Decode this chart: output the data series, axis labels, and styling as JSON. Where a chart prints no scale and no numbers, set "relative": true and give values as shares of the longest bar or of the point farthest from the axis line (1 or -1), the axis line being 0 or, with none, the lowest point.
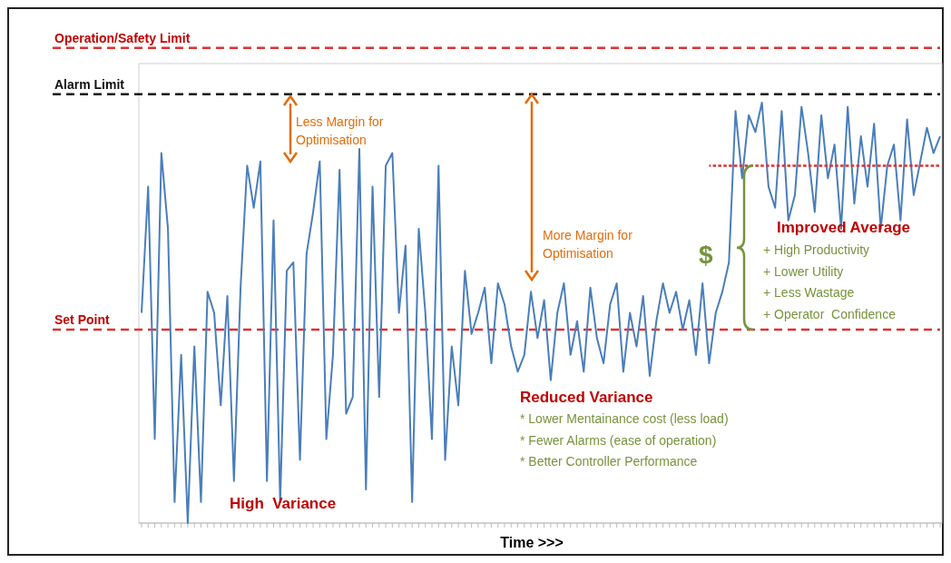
{
  "chart_data": {
    "type": "line",
    "relative": true,
    "xlabel": "Time >>>",
    "categories": [
      null,
      null,
      null,
      null,
      null,
      null,
      null,
      null,
      null,
      null,
      null,
      null,
      null,
      null,
      null,
      null,
      null,
      null,
      null,
      null,
      null,
      null,
      null,
      null,
      null,
      null,
      null,
      null,
      null,
      null,
      null,
      null,
      null,
      null,
      null,
      null,
      null,
      null,
      null,
      null,
      null,
      null,
      null,
      null,
      null,
      null,
      null,
      null,
      null,
      null,
      null,
      null,
      null,
      null,
      null,
      null,
      null,
      null,
      null,
      null,
      null,
      null,
      null,
      null,
      null,
      null,
      null,
      null,
      null,
      null,
      null,
      null,
      null,
      null,
      null,
      null,
      null,
      null,
      null,
      null,
      null,
      null,
      null,
      null,
      null,
      null,
      null,
      null,
      null,
      null,
      null,
      null,
      null,
      null,
      null,
      null,
      null,
      null,
      null,
      null,
      null,
      null,
      null,
      null,
      null,
      null,
      null,
      null,
      null,
      null,
      null,
      null,
      null,
      null,
      null,
      null,
      null,
      null,
      null,
      null,
      null,
      null
    ],
    "series": [
      {
        "color": "#4a7ebb",
        "values": [
          0.5,
          0.8,
          0.2,
          0.88,
          0.7,
          0.05,
          0.4,
          0.0,
          0.42,
          0.05,
          0.55,
          0.5,
          0.28,
          0.54,
          0.1,
          0.56,
          0.85,
          0.75,
          0.86,
          0.1,
          0.72,
          0.05,
          0.6,
          0.62,
          0.15,
          0.64,
          0.74,
          0.86,
          0.2,
          0.4,
          0.84,
          0.26,
          0.3,
          0.89,
          0.08,
          0.8,
          0.3,
          0.85,
          0.88,
          0.5,
          0.66,
          0.05,
          0.7,
          0.5,
          0.2,
          0.85,
          0.15,
          0.42,
          0.28,
          0.6,
          0.45,
          0.5,
          0.56,
          0.38,
          0.57,
          0.52,
          0.42,
          0.36,
          0.4,
          0.55,
          0.44,
          0.53,
          0.34,
          0.5,
          0.57,
          0.4,
          0.48,
          0.36,
          0.56,
          0.44,
          0.38,
          0.52,
          0.57,
          0.36,
          0.5,
          0.42,
          0.54,
          0.35,
          0.48,
          0.57,
          0.5,
          0.55,
          0.46,
          0.53,
          0.4,
          0.57,
          0.38,
          0.5,
          0.55,
          0.62,
          0.98,
          0.82,
          0.97,
          0.93,
          1.0,
          0.8,
          0.75,
          0.98,
          0.72,
          0.78,
          0.99,
          0.88,
          0.74,
          0.97,
          0.82,
          0.9,
          0.7,
          0.99,
          0.76,
          0.92,
          0.8,
          0.95,
          0.7,
          0.85,
          0.9,
          0.72,
          0.96,
          0.78,
          0.86,
          0.94,
          0.88,
          0.92
        ]
      },
      {
        "color": "#e03030",
        "line_style": "dashed",
        "values": [
          null,
          null,
          null,
          null,
          null,
          null,
          null,
          null,
          null,
          null,
          null,
          null,
          null,
          null,
          null,
          null,
          null,
          null,
          null,
          null,
          null,
          null,
          null,
          null,
          null,
          null,
          null,
          null,
          null,
          null,
          null,
          null,
          null,
          null,
          null,
          null,
          null,
          null,
          null,
          null,
          null,
          null,
          null,
          null,
          null,
          null,
          null,
          null,
          null,
          null,
          null,
          null,
          null,
          null,
          null,
          null,
          null,
          null,
          null,
          null,
          null,
          null,
          null,
          null,
          null,
          null,
          null,
          null,
          null,
          null,
          null,
          null,
          null,
          null,
          null,
          null,
          null,
          null,
          null,
          null,
          null,
          null,
          null,
          null,
          null,
          null,
          0.85,
          0.85,
          0.85,
          0.85,
          0.85,
          0.85,
          0.85,
          0.85,
          0.85,
          0.85,
          0.85,
          0.85,
          0.85,
          0.85,
          0.85,
          0.85,
          0.85,
          0.85,
          0.85,
          0.85,
          0.85,
          0.85,
          0.85,
          0.85,
          0.85,
          0.85,
          0.85,
          0.85,
          0.85,
          0.85,
          0.85,
          0.85,
          0.85,
          0.85,
          0.85,
          0.85
        ]
      }
    ],
    "ref_lines": [
      {
        "axis": "y",
        "value": 1.13,
        "label": "Operation/Safety Limit",
        "color": "#e03030",
        "line_style": "dashed"
      },
      {
        "axis": "y",
        "value": 1.02,
        "label": "Alarm Limit",
        "color": "#111111",
        "line_style": "dashed"
      },
      {
        "axis": "y",
        "value": 0.46,
        "label": "Set Point",
        "color": "#e03030",
        "line_style": "dashed"
      }
    ],
    "annotations": [
      "Less Margin for Optimisation",
      "More Margin for Optimisation",
      "$",
      "High  Variance",
      "Reduced Variance",
      "* Lower Mentainance cost (less load)",
      "* Fewer Alarms (ease of operation)",
      "* Better Controller Performance",
      "Improved Average",
      "+ High Productivity",
      "+ Lower Utility",
      "+ Less Wastage",
      "+ Operator  Confidence"
    ]
  }
}
